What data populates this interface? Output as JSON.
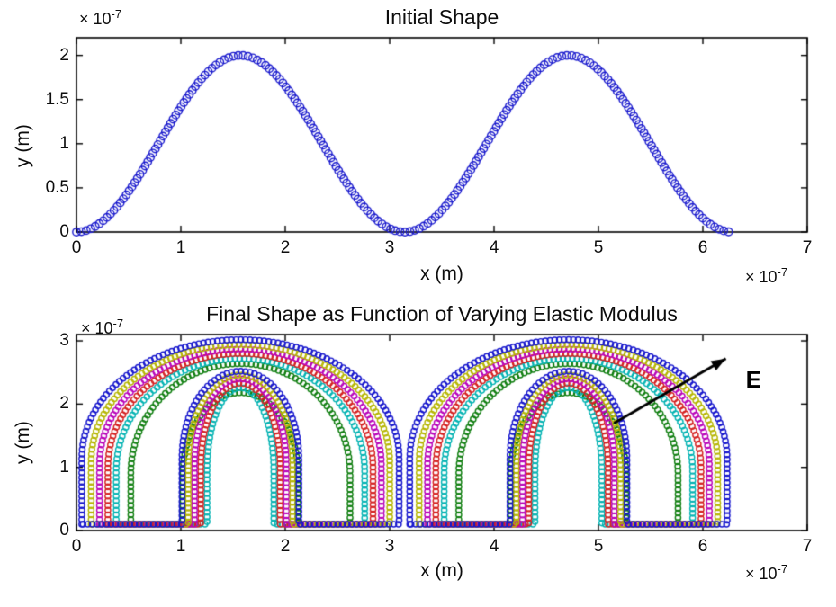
{
  "figure": {
    "background": "#ffffff",
    "kind": "matlab-style figure, two stacked scatter subplots of open circle markers"
  },
  "chart_data": [
    {
      "type": "scatter",
      "title": "Initial Shape",
      "xlabel": "x (m)",
      "ylabel": "y (m)",
      "axis_scale_prefix": "× 10",
      "axis_scale_exponent": "-7",
      "units": "axis values are ×10⁻⁷ m",
      "xlim": [
        0,
        7
      ],
      "ylim": [
        0,
        2.2
      ],
      "xticks": [
        0,
        1,
        2,
        3,
        4,
        5,
        6,
        7
      ],
      "yticks": [
        0,
        0.5,
        1,
        1.5,
        2
      ],
      "grid": false,
      "legend": "none",
      "marker": "open-circle",
      "series": [
        {
          "name": "initial sinusoidal profile",
          "color": "#1a1acd",
          "model": "y = 2e-7 * sin^2(1e7 * x) m, two humps peaking at 2e-7",
          "amplitude": 2,
          "x_start": 0,
          "x_end": 6.2832,
          "sample_points": [
            [
              0,
              0
            ],
            [
              0.31,
              0.19
            ],
            [
              0.63,
              0.69
            ],
            [
              0.94,
              1.31
            ],
            [
              1.26,
              1.81
            ],
            [
              1.57,
              2.0
            ],
            [
              1.88,
              1.81
            ],
            [
              2.2,
              1.31
            ],
            [
              2.51,
              0.69
            ],
            [
              2.83,
              0.19
            ],
            [
              3.14,
              0
            ],
            [
              3.46,
              0.19
            ],
            [
              3.77,
              0.69
            ],
            [
              4.08,
              1.31
            ],
            [
              4.4,
              1.81
            ],
            [
              4.71,
              2.0
            ],
            [
              5.03,
              1.81
            ],
            [
              5.34,
              1.31
            ],
            [
              5.65,
              0.69
            ],
            [
              5.97,
              0.19
            ],
            [
              6.28,
              0
            ]
          ]
        }
      ]
    },
    {
      "type": "scatter",
      "title": "Final Shape as Function of Varying Elastic Modulus",
      "xlabel": "x (m)",
      "ylabel": "y (m)",
      "axis_scale_prefix": "× 10",
      "axis_scale_exponent": "-7",
      "units": "axis values are ×10⁻⁷ m",
      "xlim": [
        0,
        7
      ],
      "ylim": [
        0,
        3.1
      ],
      "xticks": [
        0,
        1,
        2,
        3,
        4,
        5,
        6,
        7
      ],
      "yticks": [
        0,
        1,
        2,
        3
      ],
      "grid": false,
      "legend": "none",
      "marker": "open-circle",
      "annotation": {
        "text": "E",
        "meaning": "arrow indicates direction of increasing elastic modulus (outer curves = higher E)",
        "arrow_start": [
          5.15,
          1.7
        ],
        "arrow_end": [
          6.22,
          2.72
        ],
        "label_pos": [
          6.48,
          2.38
        ]
      },
      "hump_centers": [
        1.5708,
        4.7124
      ],
      "leg_bottom": 0.1,
      "series": [
        {
          "name": "highest E (outermost, blue)",
          "color": "#1414cc",
          "peak": 3.02,
          "outer_halfwidth": 1.52,
          "inner_halfwidth": 0.56,
          "arch_base": 1.15,
          "inner_peak": 2.52
        },
        {
          "name": "2nd highest E (dark yellow)",
          "color": "#b5b500",
          "peak": 2.94,
          "outer_halfwidth": 1.43,
          "inner_halfwidth": 0.5,
          "arch_base": 1.1,
          "inner_peak": 2.46
        },
        {
          "name": "3rd highest E (magenta)",
          "color": "#b800b8",
          "peak": 2.87,
          "outer_halfwidth": 1.35,
          "inner_halfwidth": 0.44,
          "arch_base": 1.05,
          "inner_peak": 2.4
        },
        {
          "name": "4th highest E (red)",
          "color": "#d41f1f",
          "peak": 2.8,
          "outer_halfwidth": 1.27,
          "inner_halfwidth": 0.38,
          "arch_base": 1.0,
          "inner_peak": 2.33
        },
        {
          "name": "5th highest E (cyan)",
          "color": "#00b2b2",
          "peak": 2.72,
          "outer_halfwidth": 1.19,
          "inner_halfwidth": 0.32,
          "arch_base": 0.95,
          "inner_peak": 2.26
        },
        {
          "name": "lowest E (innermost, green)",
          "color": "#0e7d0e",
          "peak": 2.64,
          "outer_halfwidth": 1.05,
          "inner_halfwidth": 0.55,
          "arch_base": 0.9,
          "inner_peak": 2.18
        }
      ]
    }
  ]
}
